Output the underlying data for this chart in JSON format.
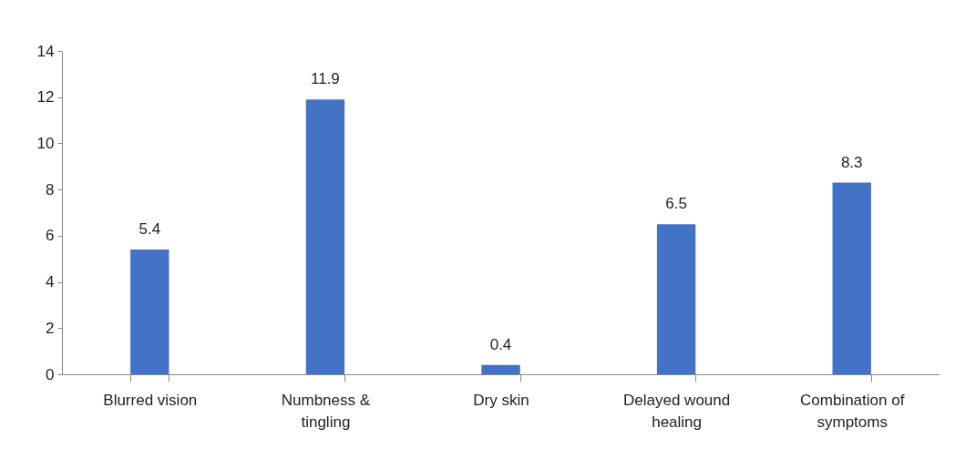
{
  "chart_data": {
    "type": "bar",
    "categories": [
      "Blurred vision",
      "Numbness & tingling",
      "Dry skin",
      "Delayed wound healing",
      "Combination of symptoms"
    ],
    "values": [
      5.4,
      11.9,
      0.4,
      6.5,
      8.3
    ],
    "color": "#4472c4",
    "ylim": [
      0,
      14
    ],
    "yticks": [
      0,
      2,
      4,
      6,
      8,
      10,
      12,
      14
    ],
    "grid": false,
    "data_labels": true
  }
}
